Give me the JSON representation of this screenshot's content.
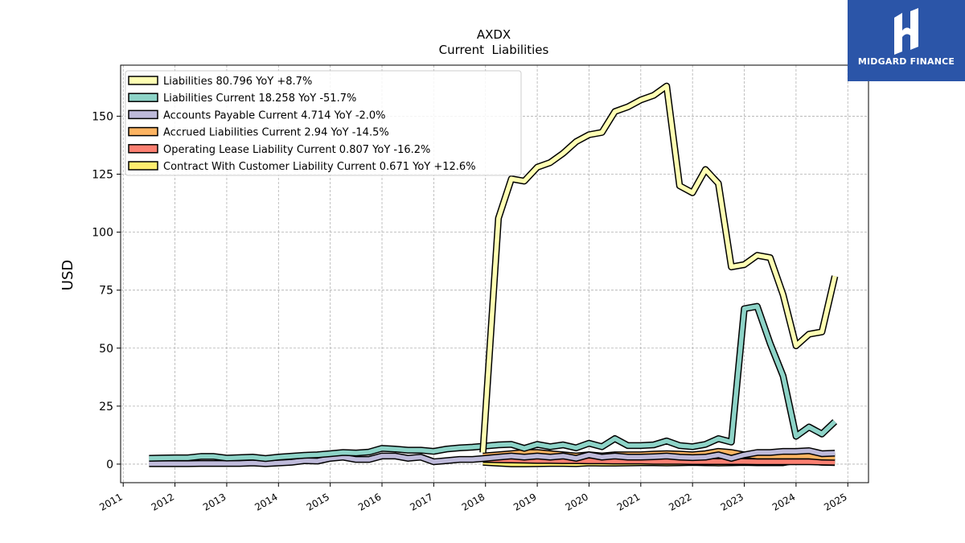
{
  "brand": {
    "name": "MIDGARD FINANCE"
  },
  "chart_data": {
    "type": "line",
    "title": "AXDX",
    "subtitle": "Current  Liabilities",
    "ylabel": "USD",
    "xlabel": "",
    "xlim": [
      2010.95,
      2025.4
    ],
    "ylim": [
      -8,
      172
    ],
    "x_ticks": [
      "2011",
      "2012",
      "2013",
      "2014",
      "2015",
      "2016",
      "2017",
      "2018",
      "2019",
      "2020",
      "2021",
      "2022",
      "2023",
      "2024",
      "2025"
    ],
    "y_ticks": [
      "0",
      "25",
      "50",
      "75",
      "100",
      "125",
      "150"
    ],
    "grid": true,
    "legend_position": "upper-left",
    "series": [
      {
        "name": "Liabilities  80.796 YoY +8.7%",
        "color": "#ffffb3",
        "x": [
          2017.95,
          2018.25,
          2018.5,
          2018.75,
          2019.0,
          2019.25,
          2019.5,
          2019.75,
          2020.0,
          2020.25,
          2020.5,
          2020.75,
          2021.0,
          2021.25,
          2021.5,
          2021.75,
          2022.0,
          2022.25,
          2022.5,
          2022.75,
          2023.0,
          2023.25,
          2023.5,
          2023.75,
          2024.0,
          2024.25,
          2024.5,
          2024.75
        ],
        "y": [
          5,
          106,
          123,
          122,
          128,
          130,
          134,
          139,
          142,
          143,
          152,
          154,
          157,
          159,
          163,
          120,
          117,
          127,
          121,
          85,
          86,
          90,
          89,
          73,
          51,
          56,
          57,
          81
        ]
      },
      {
        "name": "Liabilities Current  18.258 YoY -51.7%",
        "color": "#8dd3c7",
        "x": [
          2011.5,
          2011.75,
          2012.0,
          2012.25,
          2012.5,
          2012.75,
          2013.0,
          2013.25,
          2013.5,
          2013.75,
          2014.0,
          2014.25,
          2014.5,
          2014.75,
          2015.0,
          2015.25,
          2015.5,
          2015.75,
          2016.0,
          2016.25,
          2016.5,
          2016.75,
          2017.0,
          2017.25,
          2017.5,
          2017.75,
          2018.0,
          2018.25,
          2018.5,
          2018.75,
          2019.0,
          2019.25,
          2019.5,
          2019.75,
          2020.0,
          2020.25,
          2020.5,
          2020.75,
          2021.0,
          2021.25,
          2021.5,
          2021.75,
          2022.0,
          2022.25,
          2022.5,
          2022.75,
          2023.0,
          2023.25,
          2023.5,
          2023.75,
          2024.0,
          2024.25,
          2024.5,
          2024.75
        ],
        "y": [
          2.5,
          2.6,
          2.7,
          2.7,
          3.3,
          3.3,
          2.6,
          2.8,
          3.0,
          2.4,
          3.0,
          3.4,
          3.8,
          4.0,
          4.5,
          5.0,
          4.8,
          5.2,
          6.8,
          6.5,
          6.0,
          6.0,
          5.5,
          6.5,
          7.0,
          7.3,
          7.8,
          8.3,
          8.5,
          6.8,
          8.5,
          7.5,
          8.3,
          7.0,
          9.0,
          7.5,
          11.0,
          8.0,
          8.0,
          8.3,
          10.0,
          8.0,
          7.5,
          8.5,
          11.0,
          9.5,
          67,
          68,
          52,
          38,
          12,
          16,
          13,
          18.3
        ]
      },
      {
        "name": "Accounts Payable Current  4.714 YoY -2.0%",
        "color": "#bebada",
        "x": [
          2011.5,
          2011.75,
          2012.0,
          2012.25,
          2012.5,
          2012.75,
          2013.0,
          2013.25,
          2013.5,
          2013.75,
          2014.0,
          2014.25,
          2014.5,
          2014.75,
          2015.0,
          2015.25,
          2015.5,
          2015.75,
          2016.0,
          2016.25,
          2016.5,
          2016.75,
          2017.0,
          2017.25,
          2017.5,
          2017.75,
          2018.0,
          2018.25,
          2018.5,
          2018.75,
          2019.0,
          2019.25,
          2019.5,
          2019.75,
          2020.0,
          2020.25,
          2020.5,
          2020.75,
          2021.0,
          2021.25,
          2021.5,
          2021.75,
          2022.0,
          2022.25,
          2022.5,
          2022.75,
          2023.0,
          2023.25,
          2023.5,
          2023.75,
          2024.0,
          2024.25,
          2024.5,
          2024.75
        ],
        "y": [
          0.2,
          0.2,
          0.2,
          0.2,
          0.3,
          0.3,
          0.3,
          0.3,
          0.5,
          0.2,
          0.5,
          0.8,
          1.5,
          1.3,
          2.5,
          3.0,
          2.0,
          2.0,
          3.5,
          3.5,
          2.5,
          3.0,
          1.0,
          1.5,
          2.0,
          2.0,
          2.5,
          3.0,
          3.5,
          3.0,
          3.5,
          3.0,
          3.5,
          2.5,
          4.0,
          3.0,
          3.5,
          3.0,
          3.0,
          3.2,
          3.5,
          3.0,
          2.8,
          3.0,
          4.0,
          2.5,
          4.0,
          5.0,
          5.0,
          5.5,
          5.5,
          5.8,
          4.5,
          4.7
        ]
      },
      {
        "name": "Accrued Liabilities Current  2.94 YoY -14.5%",
        "color": "#fdb462",
        "x": [
          2017.95,
          2018.25,
          2018.5,
          2018.75,
          2019.0,
          2019.25,
          2019.5,
          2019.75,
          2020.0,
          2020.25,
          2020.5,
          2020.75,
          2021.0,
          2021.25,
          2021.5,
          2021.75,
          2022.0,
          2022.25,
          2022.5,
          2022.75,
          2023.0,
          2023.25,
          2023.5,
          2023.75,
          2024.0,
          2024.25,
          2024.5,
          2024.75
        ],
        "y": [
          3.5,
          4.0,
          4.5,
          5.0,
          5.0,
          4.5,
          4.0,
          3.5,
          4.0,
          3.5,
          4.0,
          4.0,
          4.0,
          4.3,
          4.5,
          4.3,
          4.0,
          4.5,
          5.5,
          5.0,
          4.0,
          3.5,
          3.5,
          3.5,
          3.5,
          3.5,
          3.0,
          2.94
        ]
      },
      {
        "name": "Operating Lease Liability Current  0.807 YoY -16.2%",
        "color": "#fb8072",
        "x": [
          2017.95,
          2018.25,
          2018.5,
          2018.75,
          2019.0,
          2019.25,
          2019.5,
          2019.75,
          2020.0,
          2020.25,
          2020.5,
          2020.75,
          2021.0,
          2021.25,
          2021.5,
          2021.75,
          2022.0,
          2022.25,
          2022.5,
          2022.75,
          2023.0,
          2023.25,
          2023.5,
          2023.75,
          2024.0,
          2024.25,
          2024.5,
          2024.75
        ],
        "y": [
          2.0,
          1.9,
          1.8,
          1.7,
          1.6,
          1.6,
          1.5,
          1.5,
          1.4,
          1.4,
          1.3,
          1.3,
          1.3,
          1.2,
          1.2,
          1.2,
          1.1,
          1.1,
          1.1,
          1.1,
          1.1,
          1.0,
          1.0,
          1.0,
          1.0,
          1.0,
          0.9,
          0.81
        ]
      },
      {
        "name": "Contract With Customer Liability Current  0.671 YoY +12.6%",
        "color": "#ffed6f",
        "x": [
          2017.95,
          2018.25,
          2018.5,
          2018.75,
          2019.0,
          2019.25,
          2019.5,
          2019.75,
          2020.0,
          2020.25,
          2020.5,
          2020.75,
          2021.0,
          2021.25,
          2021.5,
          2021.75,
          2022.0,
          2022.25,
          2022.5,
          2022.75,
          2023.0,
          2023.25,
          2023.5,
          2023.75,
          2024.0,
          2024.25,
          2024.5,
          2024.75
        ],
        "y": [
          0.8,
          0.4,
          0.1,
          0.1,
          0.2,
          0.3,
          0.3,
          0.2,
          0.5,
          0.4,
          0.4,
          0.5,
          0.6,
          0.6,
          0.5,
          0.6,
          0.7,
          0.6,
          0.5,
          0.6,
          0.7,
          0.6,
          0.6,
          0.6,
          1.6,
          1.3,
          0.8,
          0.67
        ]
      }
    ]
  }
}
